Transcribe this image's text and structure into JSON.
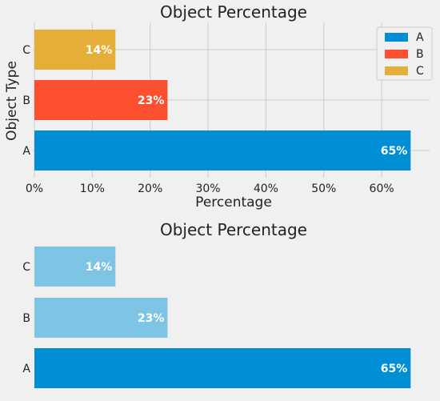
{
  "chart_data": [
    {
      "type": "bar",
      "orientation": "horizontal",
      "title": "Object Percentage",
      "xlabel": "Percentage",
      "ylabel": "Object Type",
      "categories": [
        "A",
        "B",
        "C"
      ],
      "values": [
        65,
        23,
        14
      ],
      "value_labels": [
        "65%",
        "23%",
        "14%"
      ],
      "colors": [
        "#008fd5",
        "#fc4f30",
        "#e5ae38"
      ],
      "xlim": [
        0,
        68
      ],
      "xticks": [
        0,
        10,
        20,
        30,
        40,
        50,
        60
      ],
      "xtick_labels": [
        "0%",
        "10%",
        "20%",
        "30%",
        "40%",
        "50%",
        "60%"
      ],
      "grid": true,
      "legend": {
        "position": "top-right",
        "entries": [
          "A",
          "B",
          "C"
        ]
      }
    },
    {
      "type": "bar",
      "orientation": "horizontal",
      "title": "Object Percentage",
      "categories": [
        "A",
        "B",
        "C"
      ],
      "values": [
        65,
        23,
        14
      ],
      "value_labels": [
        "65%",
        "23%",
        "14%"
      ],
      "colors": [
        "#008fd5",
        "#7ec4e5",
        "#7ec4e5"
      ],
      "xlim": [
        0,
        68
      ],
      "grid": false
    }
  ]
}
